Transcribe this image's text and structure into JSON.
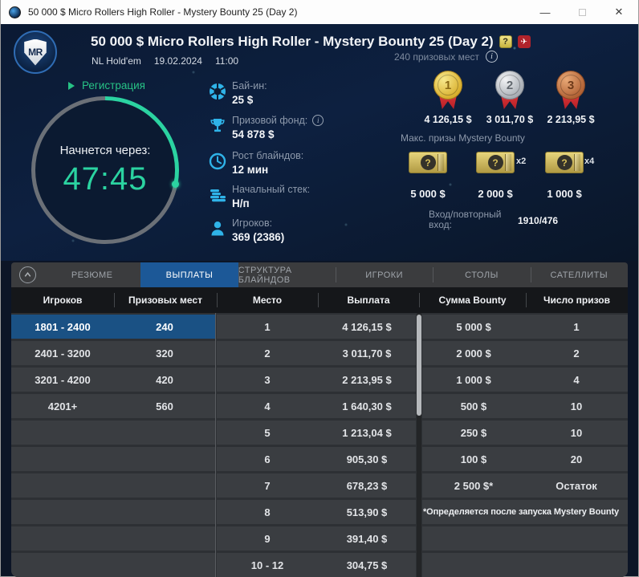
{
  "titlebar": {
    "title": "50 000 $ Micro Rollers High Roller - Mystery Bounty 25 (Day 2)",
    "minimize_glyph": "—",
    "close_glyph": "✕"
  },
  "header": {
    "logo_text": "MR",
    "title": "50 000 $ Micro Rollers High Roller - Mystery Bounty 25 (Day 2)",
    "mystery_badge_glyph": "?",
    "plane_badge_glyph": "✈",
    "game_type": "NL Hold'em",
    "date": "19.02.2024",
    "time": "11:00",
    "prize_places": "240 призовых мест",
    "registration_label": "Регистрация",
    "countdown": {
      "label": "Начнется через:",
      "value": "47:45",
      "progress_deg": 101,
      "accent_color": "#2bd3a1",
      "track_color": "#6b7077"
    },
    "info_items": [
      {
        "icon": "chip-icon",
        "label": "Бай-ин:",
        "value": "25 $"
      },
      {
        "icon": "trophy-icon",
        "label": "Призовой фонд:",
        "value": "54 878 $"
      },
      {
        "icon": "clock-icon",
        "label": "Рост блайндов:",
        "value": "12 мин"
      },
      {
        "icon": "coins-icon",
        "label": "Начальный стек:",
        "value": "Н/п"
      },
      {
        "icon": "player-icon",
        "label": "Игроков:",
        "value": "369 (2386)"
      }
    ],
    "podium": [
      {
        "place": "1",
        "prize": "4 126,15 $",
        "medal_color": "#d9af2e"
      },
      {
        "place": "2",
        "prize": "3 011,70 $",
        "medal_color": "#a9aeb5"
      },
      {
        "place": "3",
        "prize": "2 213,95 $",
        "medal_color": "#b26336"
      }
    ],
    "mystery_bounty": {
      "label": "Макс. призы Mystery Bounty",
      "chest_glyph": "?",
      "chests": [
        {
          "value": "5 000 $",
          "multiplier": ""
        },
        {
          "value": "2 000 $",
          "multiplier": "x2"
        },
        {
          "value": "1 000 $",
          "multiplier": "x4"
        }
      ]
    },
    "entries": {
      "label_line1": "Вход/повторный",
      "label_line2": "вход:",
      "value": "1910/476"
    }
  },
  "tabs": [
    {
      "label": "РЕЗЮМЕ",
      "active": false
    },
    {
      "label": "ВЫПЛАТЫ",
      "active": true
    },
    {
      "label": "СТРУКТУРА БЛАЙНДОВ",
      "active": false
    },
    {
      "label": "ИГРОКИ",
      "active": false
    },
    {
      "label": "СТОЛЫ",
      "active": false
    },
    {
      "label": "САТЕЛЛИТЫ",
      "active": false
    }
  ],
  "payouts": {
    "columns": [
      "Игроков",
      "Призовых мест",
      "Место",
      "Выплата",
      "Сумма Bounty",
      "Число призов"
    ],
    "player_ranges": [
      {
        "players": "1801 - 2400",
        "places": "240",
        "selected": true
      },
      {
        "players": "2401 - 3200",
        "places": "320",
        "selected": false
      },
      {
        "players": "3201 - 4200",
        "places": "420",
        "selected": false
      },
      {
        "players": "4201+",
        "places": "560",
        "selected": false
      }
    ],
    "payout_rows": [
      {
        "place": "1",
        "payout": "4 126,15 $"
      },
      {
        "place": "2",
        "payout": "3 011,70 $"
      },
      {
        "place": "3",
        "payout": "2 213,95 $"
      },
      {
        "place": "4",
        "payout": "1 640,30 $"
      },
      {
        "place": "5",
        "payout": "1 213,04 $"
      },
      {
        "place": "6",
        "payout": "905,30 $"
      },
      {
        "place": "7",
        "payout": "678,23 $"
      },
      {
        "place": "8",
        "payout": "513,90 $"
      },
      {
        "place": "9",
        "payout": "391,40 $"
      },
      {
        "place": "10 - 12",
        "payout": "304,75 $"
      }
    ],
    "bounty_rows": [
      {
        "amount": "5 000 $",
        "count": "1"
      },
      {
        "amount": "2 000 $",
        "count": "2"
      },
      {
        "amount": "1 000 $",
        "count": "4"
      },
      {
        "amount": "500 $",
        "count": "10"
      },
      {
        "amount": "250 $",
        "count": "10"
      },
      {
        "amount": "100 $",
        "count": "20"
      },
      {
        "amount": "2 500 $*",
        "count": "Остаток"
      }
    ],
    "footnote": "*Определяется после запуска Mystery Bounty"
  }
}
